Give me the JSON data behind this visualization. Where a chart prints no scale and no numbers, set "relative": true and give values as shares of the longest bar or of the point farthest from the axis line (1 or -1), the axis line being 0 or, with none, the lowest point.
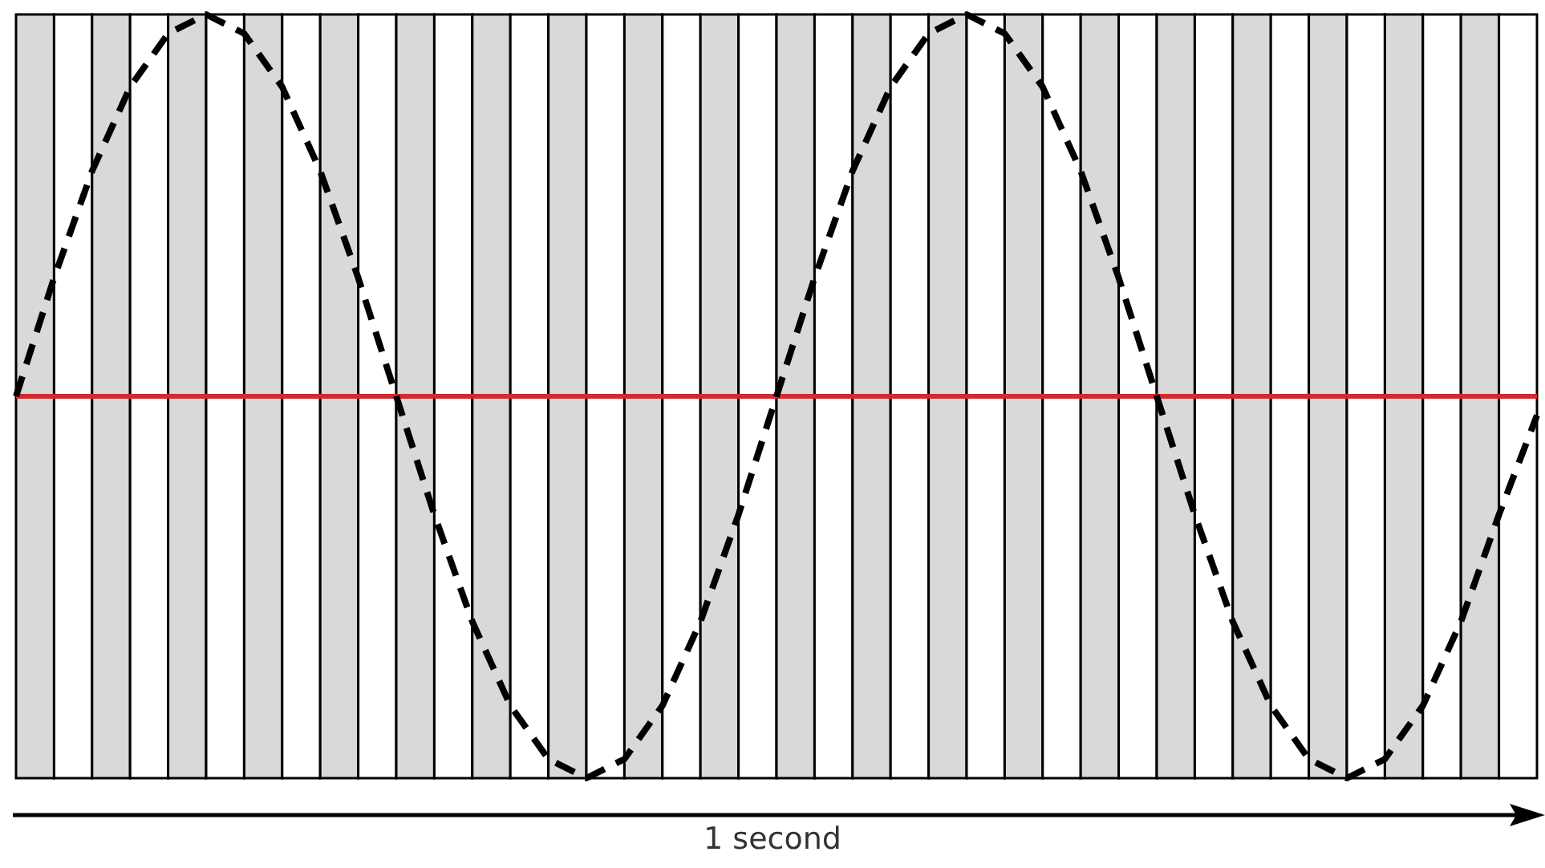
{
  "chart_data": {
    "type": "line",
    "relative": true,
    "categories": [
      null,
      null,
      null,
      null,
      null,
      null,
      null,
      null,
      null,
      null,
      null,
      null,
      null,
      null,
      null,
      null,
      null,
      null,
      null,
      null,
      null,
      null,
      null,
      null,
      null,
      null,
      null,
      null,
      null,
      null,
      null,
      null,
      null,
      null,
      null,
      null,
      null,
      null,
      null,
      null,
      null
    ],
    "series": [
      {
        "color": "#000000",
        "line_style": "dashed",
        "values": [
          0,
          0.31,
          0.59,
          0.81,
          0.95,
          1,
          0.95,
          0.81,
          0.59,
          0.31,
          0,
          -0.31,
          -0.59,
          -0.81,
          -0.95,
          -1,
          -0.95,
          -0.81,
          -0.59,
          -0.31,
          0,
          0.31,
          0.59,
          0.81,
          0.95,
          1,
          0.95,
          0.81,
          0.59,
          0.31,
          0,
          -0.31,
          -0.59,
          -0.81,
          -0.95,
          -1,
          -0.95,
          -0.81,
          -0.59,
          -0.31,
          -0.05
        ]
      }
    ],
    "ref_lines": [
      {
        "axis": "y",
        "value": 0,
        "color": "#d12a2f"
      }
    ],
    "annotations": [
      "1 second"
    ]
  }
}
